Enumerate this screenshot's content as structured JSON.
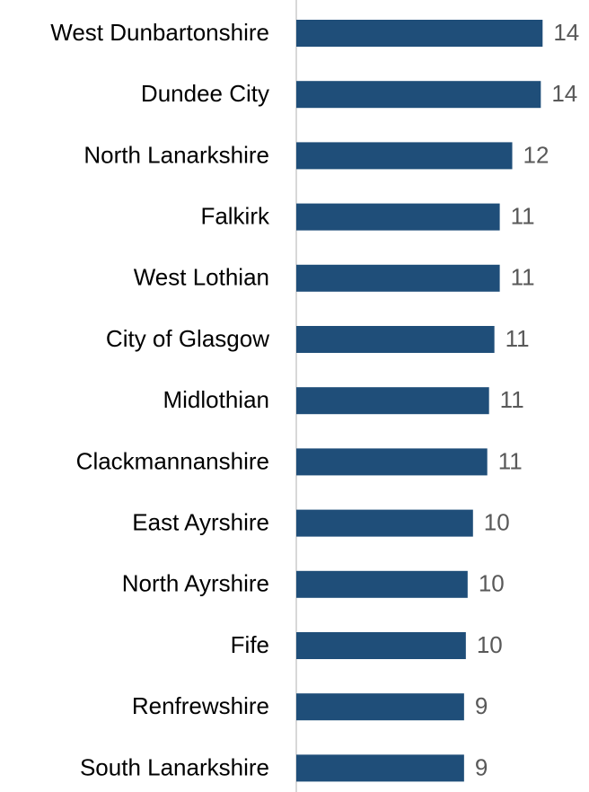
{
  "chart_data": {
    "type": "barh",
    "categories": [
      "West Dunbartonshire",
      "Dundee City",
      "North Lanarkshire",
      "Falkirk",
      "West Lothian",
      "City of Glasgow",
      "Midlothian",
      "Clackmannanshire",
      "East Ayrshire",
      "North Ayrshire",
      "Fife",
      "Renfrewshire",
      "South Lanarkshire"
    ],
    "values": [
      13.8,
      13.7,
      12.1,
      11.4,
      11.4,
      11.1,
      10.8,
      10.7,
      9.9,
      9.6,
      9.5,
      9.4,
      9.4
    ],
    "value_labels": [
      "14",
      "14",
      "12",
      "11",
      "11",
      "11",
      "11",
      "11",
      "10",
      "10",
      "10",
      "9",
      "9"
    ],
    "color": "#1f4e79",
    "xlim": [
      0,
      16.4
    ]
  }
}
